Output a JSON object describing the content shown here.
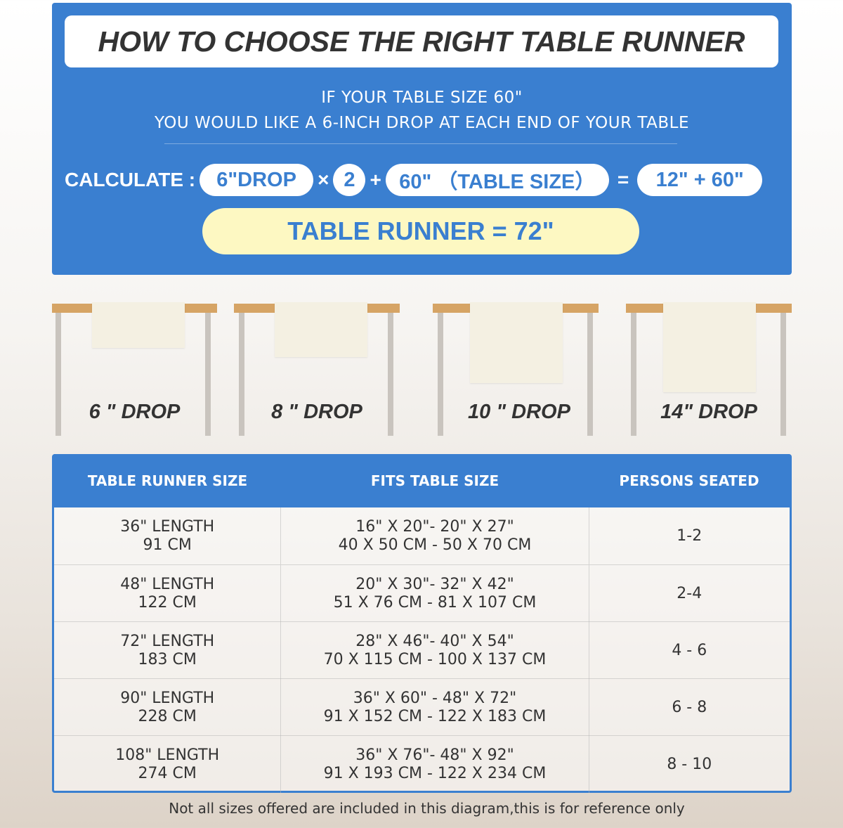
{
  "header": {
    "title": "HOW TO CHOOSE THE RIGHT TABLE RUNNER",
    "line1": "IF YOUR TABLE SIZE 60\"",
    "line2": "YOU WOULD LIKE A 6-INCH DROP AT EACH END OF YOUR TABLE"
  },
  "calc": {
    "label": "CALCULATE :",
    "drop": "6\"DROP",
    "times": "×",
    "two": "2",
    "plus": "+",
    "table": "60\" （TABLE SIZE）",
    "equals": "=",
    "sum": "12\" + 60\"",
    "result": "TABLE RUNNER = 72\""
  },
  "drops": [
    "6 \" DROP",
    "8 \" DROP",
    "10 \" DROP",
    "14\" DROP"
  ],
  "table": {
    "headers": [
      "TABLE RUNNER SIZE",
      "FITS TABLE SIZE",
      "PERSONS SEATED"
    ],
    "rows": [
      {
        "len": "36\" LENGTH",
        "cm": "91 CM",
        "fit_in": "16\" X 20\"- 20\" X 27\"",
        "fit_cm": "40 X 50 CM - 50 X 70 CM",
        "seats": "1-2"
      },
      {
        "len": "48\" LENGTH",
        "cm": "122 CM",
        "fit_in": "20\" X 30\"- 32\" X 42\"",
        "fit_cm": "51 X 76 CM - 81 X 107 CM",
        "seats": "2-4"
      },
      {
        "len": "72\" LENGTH",
        "cm": "183 CM",
        "fit_in": "28\" X 46\"- 40\" X 54\"",
        "fit_cm": "70 X 115 CM - 100 X 137 CM",
        "seats": "4 - 6"
      },
      {
        "len": "90\" LENGTH",
        "cm": "228 CM",
        "fit_in": "36\" X 60\" - 48\" X 72\"",
        "fit_cm": "91 X 152 CM - 122 X 183 CM",
        "seats": "6 - 8"
      },
      {
        "len": "108\" LENGTH",
        "cm": "274 CM",
        "fit_in": "36\" X 76\"- 48\" X 92\"",
        "fit_cm": "91 X 193 CM - 122 X 234 CM",
        "seats": "8 - 10"
      }
    ]
  },
  "note": "Not all sizes offered are included in this diagram,this is for reference only",
  "colors": {
    "blue": "#3a7fd0",
    "yellow": "#fdf8c2",
    "wood": "#d6a465"
  }
}
